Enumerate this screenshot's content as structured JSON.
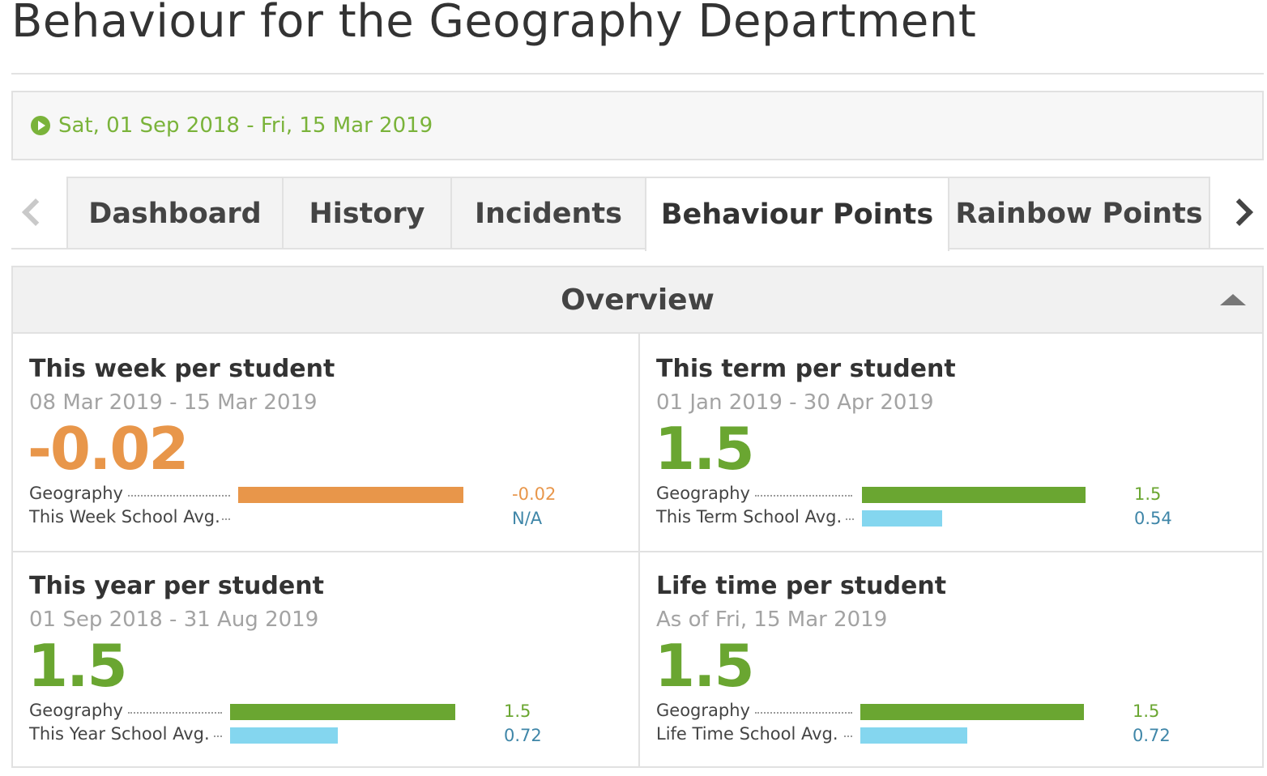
{
  "page": {
    "title": "Behaviour for the Geography Department"
  },
  "date_filter": {
    "range": "Sat, 01 Sep 2018 - Fri, 15 Mar 2019"
  },
  "tabs": [
    {
      "label": "Dashboard"
    },
    {
      "label": "History"
    },
    {
      "label": "Incidents"
    },
    {
      "label": "Behaviour Points",
      "active": true
    },
    {
      "label": "Rainbow Points"
    }
  ],
  "overview": {
    "title": "Overview",
    "cards": [
      {
        "title": "This week per student",
        "period": "08 Mar 2019 - 15 Mar 2019",
        "value": "-0.02",
        "rows": [
          {
            "label": "Geography",
            "value": "-0.02",
            "fraction": 1.0
          },
          {
            "label": "This Week School Avg.",
            "value": "N/A",
            "fraction": 0
          }
        ]
      },
      {
        "title": "This term per student",
        "period": "01 Jan 2019 - 30 Apr 2019",
        "value": "1.5",
        "rows": [
          {
            "label": "Geography",
            "value": "1.5",
            "fraction": 1.0
          },
          {
            "label": "This Term School Avg.",
            "value": "0.54",
            "fraction": 0.36
          }
        ]
      },
      {
        "title": "This year per student",
        "period": "01 Sep 2018 - 31 Aug 2019",
        "value": "1.5",
        "rows": [
          {
            "label": "Geography",
            "value": "1.5",
            "fraction": 1.0
          },
          {
            "label": "This Year School Avg.",
            "value": "0.72",
            "fraction": 0.48
          }
        ]
      },
      {
        "title": "Life time per student",
        "period": "As of Fri, 15 Mar 2019",
        "value": "1.5",
        "rows": [
          {
            "label": "Geography",
            "value": "1.5",
            "fraction": 1.0
          },
          {
            "label": "Life Time School Avg.",
            "value": "0.72",
            "fraction": 0.48
          }
        ]
      }
    ]
  },
  "colors": {
    "accent_green": "#6aa631",
    "negative_orange": "#e8964a",
    "school_avg_blue": "#84d6ef"
  },
  "icons": {
    "date": "play-circle-icon",
    "prev": "chevron-left-icon",
    "next": "chevron-right-icon",
    "collapse": "caret-up-icon"
  }
}
